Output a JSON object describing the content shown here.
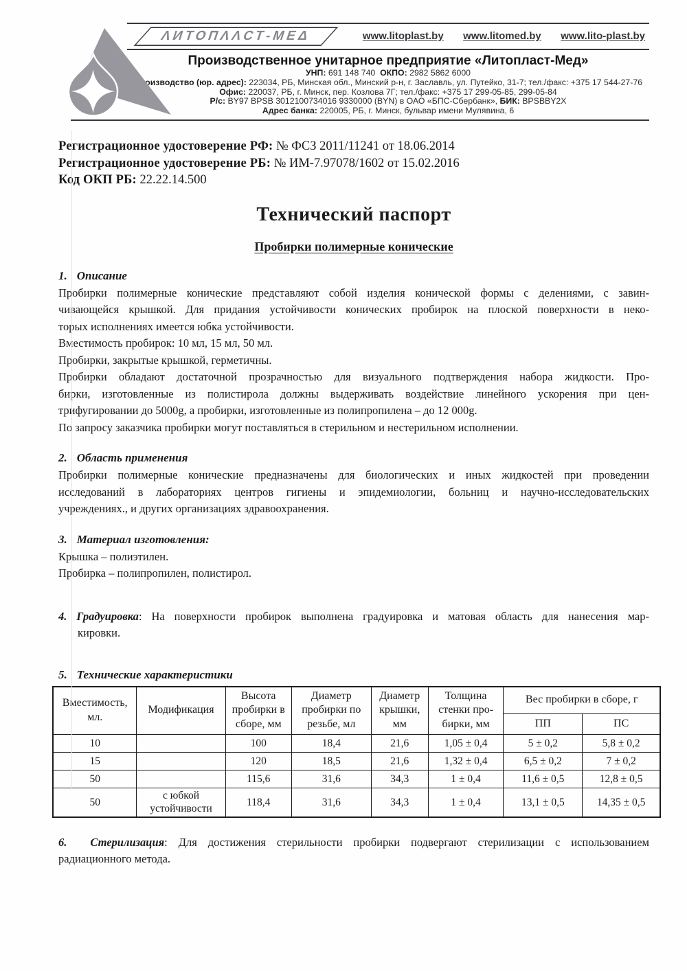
{
  "colors": {
    "ink": "#1b1b1b",
    "logo_gray": "#97979d",
    "brand_text_gray": "#87878e"
  },
  "header": {
    "brand_plate": "ΛИТОПΛΛСТ-МЕΔ",
    "websites": [
      "www.litoplast.by",
      "www.litomed.by",
      "www.lito-plast.by"
    ],
    "company_name": "Производственное унитарное предприятие «Литопласт-Мед»",
    "info": {
      "unp_label": "УНП:",
      "unp": "691 148 740",
      "okpo_label": "ОКПО:",
      "okpo": "2982 5862 6000",
      "production_label": "Производство (юр. адрес):",
      "production": "223034, РБ, Минская обл., Минский р-н, г. Заславль, ул. Путейко, 31-7; тел./факс: +375 17 544-27-76",
      "office_label": "Офис:",
      "office": "220037, РБ, г. Минск, пер. Козлова 7Г; тел./факс: +375 17 299-05-85, 299-05-84",
      "account_label": "Р/с:",
      "account": "BY97 BPSB 3012100734016 9330000 (BYN) в ОАО «БПС-Сбербанк»,",
      "bik_label": "БИК:",
      "bik": "BPSBBY2X",
      "bank_label": "Адрес банка:",
      "bank": "220005, РБ, г. Минск, бульвар имени Мулявина, 6"
    }
  },
  "registration": [
    {
      "label": "Регистрационное удостоверение РФ:",
      "value": "№ ФСЗ 2011/11241 от 18.06.2014"
    },
    {
      "label": "Регистрационное удостоверение РБ:",
      "value": "№ ИМ-7.97078/1602 от 15.02.2016"
    },
    {
      "label": "Код ОКП РБ:",
      "value": "22.22.14.500"
    }
  ],
  "title": "Технический паспорт",
  "subtitle": "Пробирки полимерные конические",
  "sections": {
    "s1": {
      "num": "1.",
      "title": "Описание",
      "paras": [
        [
          "Пробирки полимерные конические представляют собой изделия конической формы с делениями, с завин-",
          "чивающейся крышкой. Для придания устойчивости конических пробирок на плоской поверхности в неко-",
          "торых исполнениях имеется юбка устойчивости."
        ],
        [
          "Вместимость пробирок: 10 мл, 15 мл, 50 мл."
        ],
        [
          "Пробирки, закрытые крышкой, герметичны."
        ],
        [
          "Пробирки обладают достаточной прозрачностью для визуального подтверждения набора жидкости. Про-",
          "бирки, изготовленные из полистирола должны выдерживать воздействие линейного ускорения при цен-",
          "трифугировании до 5000g, а пробирки, изготовленные из полипропилена – до 12 000g."
        ],
        [
          "По запросу заказчика пробирки могут поставляться в стерильном и нестерильном исполнении."
        ]
      ]
    },
    "s2": {
      "num": "2.",
      "title": "Область применения",
      "paras": [
        [
          "Пробирки полимерные конические предназначены для биологических и иных жидкостей при проведении",
          "исследований в лабораториях центров гигиены и эпидемиологии, больниц и научно-исследовательских",
          "учреждениях., и других организациях здравоохранения."
        ]
      ]
    },
    "s3": {
      "num": "3.",
      "title": "Материал изготовления:",
      "paras": [
        [
          "Крышка – полиэтилен."
        ],
        [
          "Пробирка – полипропилен, полистирол."
        ]
      ]
    },
    "s4": {
      "num": "4.",
      "title": "Градуировка",
      "text_line1": ": На поверхности пробирок выполнена градуировка и матовая область для нанесения мар-",
      "text_line2": "кировки."
    },
    "s5": {
      "num": "5.",
      "title": "Технические характеристики"
    },
    "s6": {
      "num": "6.",
      "title": "Стерилизация",
      "text_line1": ": Для достижения стерильности пробирки подвергают стерилизации с использованием",
      "text_line2": "радиационного метода."
    }
  },
  "table": {
    "headers": [
      "Вместимость, мл.",
      "Модификация",
      "Высота пробирки в сборе, мм",
      "Диаметр пробирки по резьбе, мл",
      "Диаметр крышки, мм",
      "Толщина стенки про-бирки, мм"
    ],
    "group_header": "Вес пробирки в сборе, г",
    "sub_headers": [
      "ПП",
      "ПС"
    ],
    "rows": [
      [
        "10",
        "",
        "100",
        "18,4",
        "21,6",
        "1,05 ± 0,4",
        "5 ± 0,2",
        "5,8 ± 0,2"
      ],
      [
        "15",
        "",
        "120",
        "18,5",
        "21,6",
        "1,32 ± 0,4",
        "6,5 ± 0,2",
        "7 ± 0,2"
      ],
      [
        "50",
        "",
        "115,6",
        "31,6",
        "34,3",
        "1 ± 0,4",
        "11,6 ± 0,5",
        "12,8 ± 0,5"
      ],
      [
        "50",
        "с юбкой устойчивости",
        "118,4",
        "31,6",
        "34,3",
        "1 ± 0,4",
        "13,1 ± 0,5",
        "14,35 ± 0,5"
      ]
    ]
  }
}
